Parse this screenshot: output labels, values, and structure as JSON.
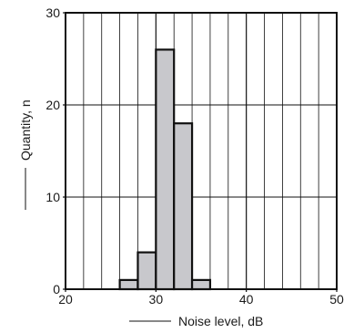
{
  "chart_data": {
    "type": "bar",
    "title": "",
    "xlabel": "Noise level, dB",
    "ylabel": "Quantity, n",
    "xlim": [
      20,
      50
    ],
    "ylim": [
      0,
      30
    ],
    "x_ticks": [
      20,
      30,
      40,
      50
    ],
    "y_ticks": [
      0,
      10,
      20,
      30
    ],
    "x_minor_grid_step": 2,
    "grid": true,
    "bar_color": "#c8c8cc",
    "bins": [
      {
        "x0": 26,
        "x1": 28,
        "value": 1
      },
      {
        "x0": 28,
        "x1": 30,
        "value": 4
      },
      {
        "x0": 30,
        "x1": 32,
        "value": 26
      },
      {
        "x0": 32,
        "x1": 34,
        "value": 18
      },
      {
        "x0": 34,
        "x1": 36,
        "value": 1
      }
    ]
  }
}
